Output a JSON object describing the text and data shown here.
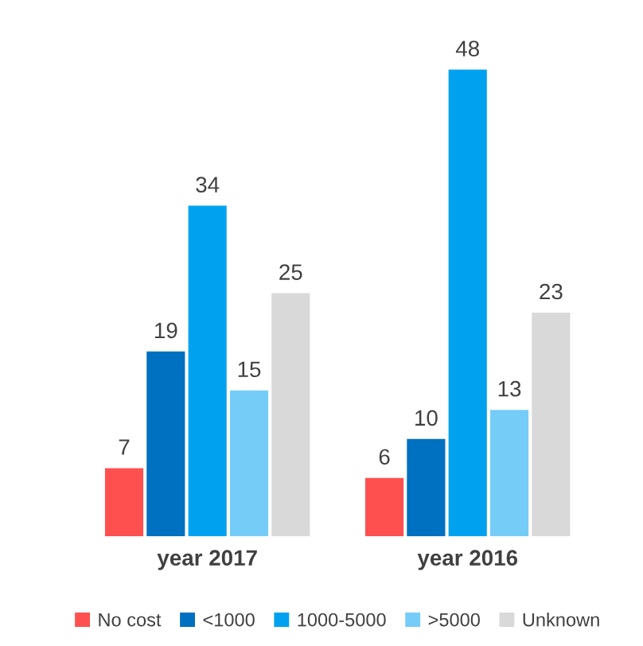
{
  "chart_data": {
    "type": "bar",
    "categories": [
      "year 2017",
      "year 2016"
    ],
    "series": [
      {
        "name": "No cost",
        "color": "#ff5050",
        "values": [
          7,
          6
        ]
      },
      {
        "name": "<1000",
        "color": "#0070c0",
        "values": [
          19,
          10
        ]
      },
      {
        "name": "1000-5000",
        "color": "#00a2f0",
        "values": [
          34,
          48
        ]
      },
      {
        "name": ">5000",
        "color": "#75cdf7",
        "values": [
          15,
          13
        ]
      },
      {
        "name": "Unknown",
        "color": "#d9d9d9",
        "values": [
          25,
          23
        ]
      }
    ],
    "data_labels": true,
    "legend": "bottom",
    "grid": false
  }
}
